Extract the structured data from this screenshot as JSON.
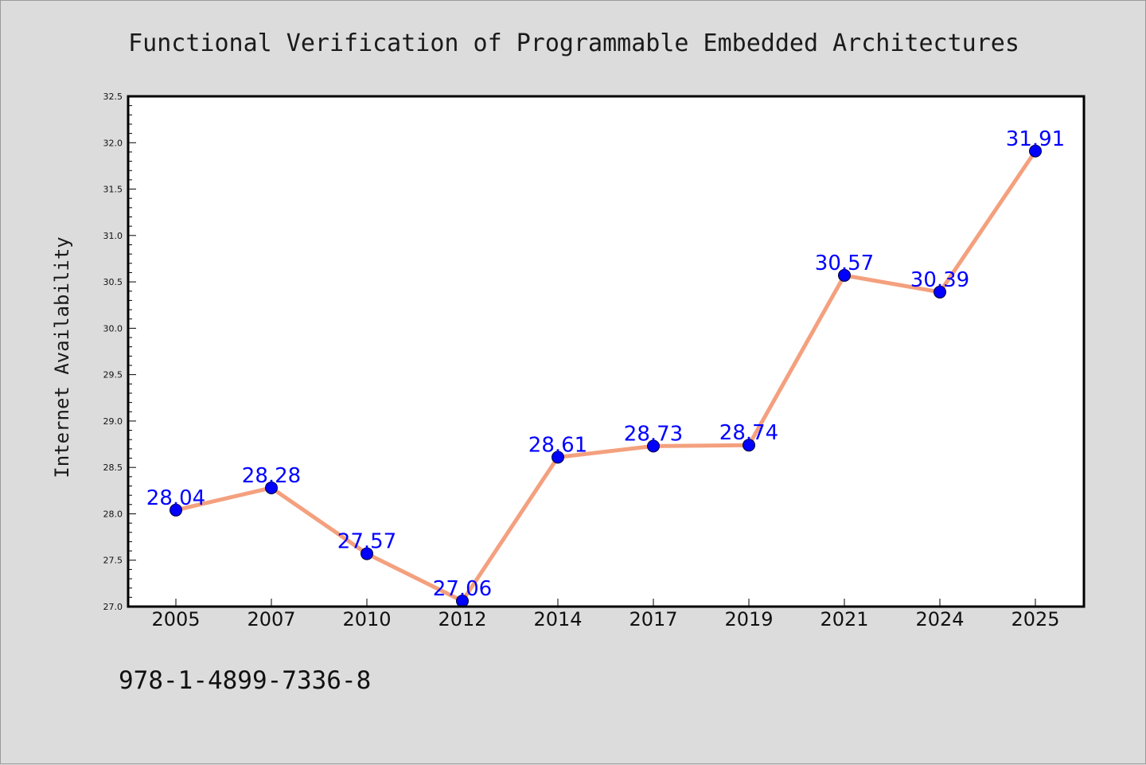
{
  "colors": {
    "background": "#dcdcdc",
    "plot_background": "#ffffff",
    "line": "#f4a07e",
    "marker": "#0000ff",
    "data_label": "#0000ff"
  },
  "footer": {
    "isbn": "978-1-4899-7336-8"
  },
  "chart_data": {
    "type": "line",
    "title": "Functional Verification of Programmable Embedded Architectures",
    "xlabel": "",
    "ylabel": "Internet Availability",
    "categories": [
      "2005",
      "2007",
      "2010",
      "2012",
      "2014",
      "2017",
      "2019",
      "2021",
      "2024",
      "2025"
    ],
    "series": [
      {
        "values": [
          28.04,
          28.28,
          27.57,
          27.06,
          28.61,
          28.73,
          28.74,
          30.57,
          30.39,
          31.91
        ]
      }
    ],
    "data_labels": [
      "28.04",
      "28.28",
      "27.57",
      "27.06",
      "28.61",
      "28.73",
      "28.74",
      "30.57",
      "30.39",
      "31.91"
    ],
    "ylim": [
      27.0,
      32.5
    ],
    "yticks": [
      "27.0",
      "27.5",
      "28.0",
      "28.5",
      "29.0",
      "29.5",
      "30.0",
      "30.5",
      "31.0",
      "31.5",
      "32.0",
      "32.5"
    ],
    "grid": false,
    "legend": "none"
  }
}
